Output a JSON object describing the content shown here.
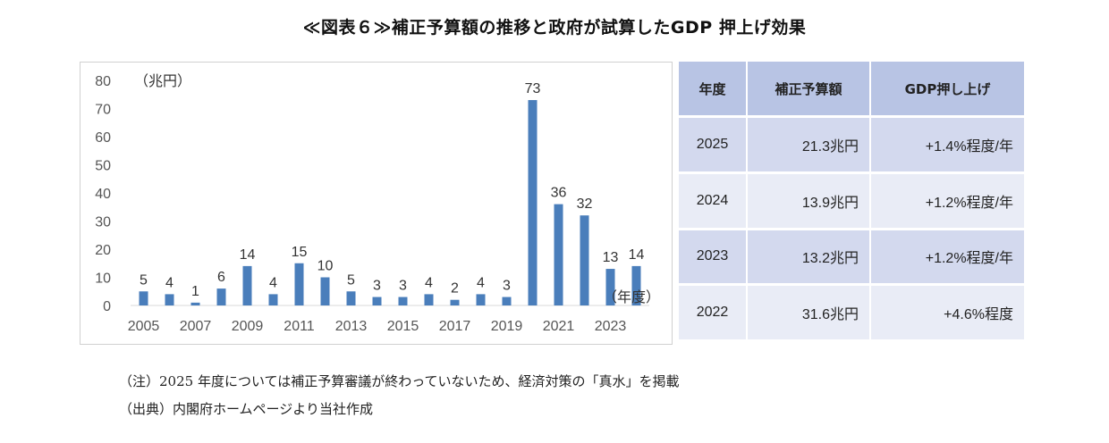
{
  "title": "≪図表６≫補正予算額の推移と政府が試算したGDP 押上げ効果",
  "chart_data": {
    "type": "bar",
    "color": "#4a7ebb",
    "x": [
      2005,
      2006,
      2007,
      2008,
      2009,
      2010,
      2011,
      2012,
      2013,
      2014,
      2015,
      2016,
      2017,
      2018,
      2019,
      2020,
      2021,
      2022,
      2023,
      2024
    ],
    "values": [
      5,
      4,
      1,
      6,
      14,
      4,
      15,
      10,
      5,
      3,
      3,
      4,
      2,
      4,
      3,
      73,
      36,
      32,
      13,
      14
    ],
    "value_labels": [
      "5",
      "4",
      "1",
      "6",
      "14",
      "4",
      "15",
      "10",
      "5",
      "3",
      "3",
      "4",
      "2",
      "4",
      "3",
      "73",
      "36",
      "32",
      "13",
      "14"
    ],
    "x_ticks": [
      "2005",
      "2007",
      "2009",
      "2011",
      "2013",
      "2015",
      "2017",
      "2019",
      "2021",
      "2023"
    ],
    "y_ticks": [
      "0",
      "10",
      "20",
      "30",
      "40",
      "50",
      "60",
      "70",
      "80"
    ],
    "ylim": [
      0,
      80
    ],
    "ylabel": "（兆円）",
    "xlabel": "（年度）",
    "grid": false
  },
  "table": {
    "headers": [
      "年度",
      "補正予算額",
      "GDP押し上げ"
    ],
    "rows": [
      {
        "year": "2025",
        "budget": "21.3兆円",
        "gdp": "+1.4%程度/年"
      },
      {
        "year": "2024",
        "budget": "13.9兆円",
        "gdp": "+1.2%程度/年"
      },
      {
        "year": "2023",
        "budget": "13.2兆円",
        "gdp": "+1.2%程度/年"
      },
      {
        "year": "2022",
        "budget": "31.6兆円",
        "gdp": "+4.6%程度"
      }
    ]
  },
  "notes": {
    "note1": "（注）2025 年度については補正予算審議が終わっていないため、経済対策の「真水」を掲載",
    "note2": "（出典）内閣府ホームページより当社作成"
  }
}
